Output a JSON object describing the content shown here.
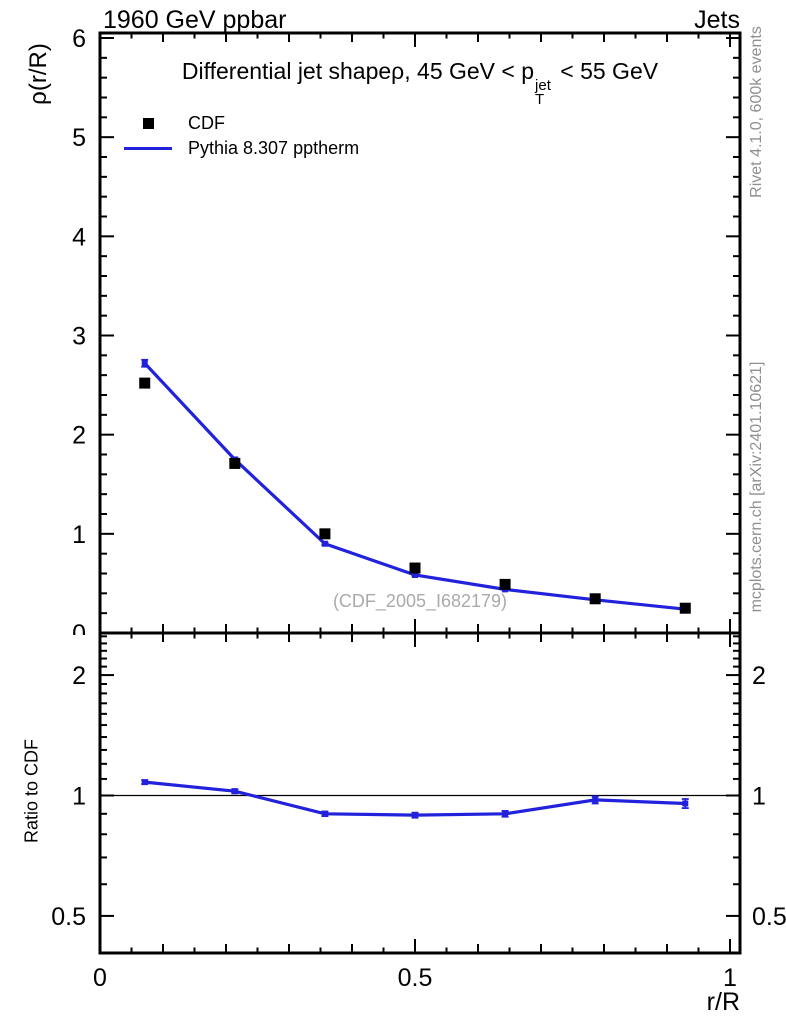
{
  "header": {
    "left": "1960 GeV ppbar",
    "right": "Jets"
  },
  "title": {
    "prefix": "Differential jet shapeρ, 45 GeV < p",
    "sup": "jet",
    "sub": "T",
    "suffix": " < 55 GeV"
  },
  "legend": {
    "items": [
      {
        "label": "CDF",
        "marker": "black-filled-square"
      },
      {
        "label": "Pythia 8.307 pptherm",
        "marker": "blue-line"
      }
    ]
  },
  "side_notes": {
    "top_right": "Rivet 4.1.0,  600k events",
    "bottom_right": "mcplots.cern.ch [arXiv:2401.10621]"
  },
  "watermark": "(CDF_2005_I682179)",
  "colors": {
    "data": "#000000",
    "mc": "#2222dd",
    "note": "#909090",
    "watermark": "#aaaaaa",
    "axis": "#000000"
  },
  "axes": {
    "x": {
      "label": "r/R",
      "min": 0,
      "max": 1.016,
      "ticks": [
        {
          "v": 0,
          "label": "0"
        },
        {
          "v": 0.5,
          "label": "0.5"
        },
        {
          "v": 1,
          "label": "1"
        }
      ],
      "medium_step": 0.1,
      "minor_step": 0.05
    },
    "y_main": {
      "label": "ρ(r/R)",
      "min": 0,
      "max": 6.05,
      "ticks": [
        0,
        1,
        2,
        3,
        4,
        5,
        6
      ],
      "minor_step": 0.2
    },
    "y_ratio": {
      "label": "Ratio to CDF",
      "scale": "log",
      "min": 0.404,
      "max": 2.55,
      "ticks": [
        {
          "v": 0.5,
          "label": "0.5"
        },
        {
          "v": 1,
          "label": "1"
        },
        {
          "v": 2,
          "label": "2"
        }
      ],
      "reference": 1
    }
  },
  "chart_data": [
    {
      "type": "line",
      "title": "Differential jet shape rho, 45 GeV < pT(jet) < 55 GeV",
      "xlabel": "r/R",
      "ylabel": "rho(r/R)",
      "xlim": [
        0,
        1.016
      ],
      "ylim": [
        0,
        6.05
      ],
      "x": [
        0.071,
        0.214,
        0.357,
        0.5,
        0.643,
        0.786,
        0.929
      ],
      "series": [
        {
          "name": "CDF",
          "type": "scatter",
          "marker": "filled-square",
          "color": "#000000",
          "values": [
            2.52,
            1.71,
            1.0,
            0.655,
            0.49,
            0.345,
            0.25
          ]
        },
        {
          "name": "Pythia 8.307 pptherm",
          "type": "line-with-markers",
          "color": "#2222dd",
          "values": [
            2.72,
            1.75,
            0.9,
            0.585,
            0.44,
            0.335,
            0.24
          ],
          "yerr": [
            0.035,
            0.02,
            0.012,
            0.01,
            0.008,
            0.007,
            0.006
          ]
        }
      ],
      "legend_position": "top-left",
      "grid": false
    },
    {
      "type": "line",
      "title": "",
      "xlabel": "r/R",
      "ylabel": "Ratio to CDF",
      "yscale": "log",
      "xlim": [
        0,
        1.016
      ],
      "ylim": [
        0.404,
        2.55
      ],
      "reference_line": 1,
      "x": [
        0.071,
        0.214,
        0.357,
        0.5,
        0.643,
        0.786,
        0.929
      ],
      "series": [
        {
          "name": "Pythia 8.307 pptherm / CDF",
          "type": "line-with-markers",
          "color": "#2222dd",
          "values": [
            1.08,
            1.025,
            0.9,
            0.893,
            0.9,
            0.975,
            0.955
          ],
          "yerr": [
            0.012,
            0.012,
            0.012,
            0.013,
            0.015,
            0.02,
            0.025
          ]
        }
      ],
      "grid": false
    }
  ]
}
